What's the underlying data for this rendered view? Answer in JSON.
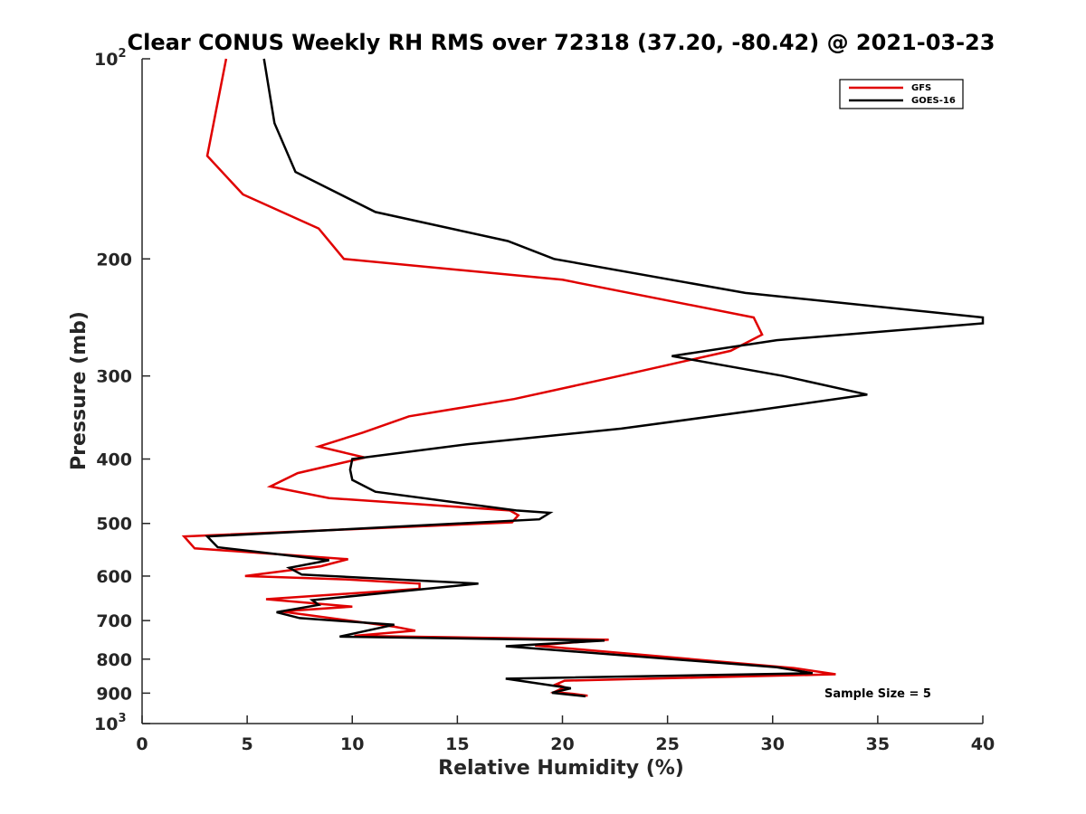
{
  "chart_data": {
    "type": "line",
    "title": "Clear CONUS Weekly RH RMS over 72318 (37.20, -80.42) @ 2021-03-23",
    "xlabel": "Relative Humidity (%)",
    "ylabel": "Pressure (mb)",
    "xlim": [
      0,
      40
    ],
    "ylim": [
      100,
      1000
    ],
    "y_scale": "log",
    "y_reversed": true,
    "x_ticks": [
      "0",
      "5",
      "10",
      "15",
      "20",
      "25",
      "30",
      "35",
      "40"
    ],
    "y_ticks": [
      {
        "value": 100,
        "label": "10",
        "sup": "2"
      },
      {
        "value": 200,
        "label": "200"
      },
      {
        "value": 300,
        "label": "300"
      },
      {
        "value": 400,
        "label": "400"
      },
      {
        "value": 500,
        "label": "500"
      },
      {
        "value": 600,
        "label": "600"
      },
      {
        "value": 700,
        "label": "700"
      },
      {
        "value": 800,
        "label": "800"
      },
      {
        "value": 900,
        "label": "900"
      },
      {
        "value": 1000,
        "label": "10",
        "sup": "3"
      }
    ],
    "legend_position": "top-right",
    "grid": false,
    "annotation": "Sample Size = 5",
    "series": [
      {
        "name": "GFS",
        "color": "#e00000",
        "points": [
          [
            4.0,
            100
          ],
          [
            3.1,
            140
          ],
          [
            4.8,
            160
          ],
          [
            8.4,
            180
          ],
          [
            9.6,
            200
          ],
          [
            20.0,
            215
          ],
          [
            29.1,
            245
          ],
          [
            29.5,
            260
          ],
          [
            28.0,
            275
          ],
          [
            22.7,
            300
          ],
          [
            17.7,
            325
          ],
          [
            12.7,
            345
          ],
          [
            10.5,
            365
          ],
          [
            8.4,
            383
          ],
          [
            10.6,
            398
          ],
          [
            7.4,
            420
          ],
          [
            6.1,
            440
          ],
          [
            8.9,
            458
          ],
          [
            17.5,
            478
          ],
          [
            17.9,
            486
          ],
          [
            17.6,
            498
          ],
          [
            2.0,
            523
          ],
          [
            2.5,
            545
          ],
          [
            9.8,
            566
          ],
          [
            8.5,
            580
          ],
          [
            4.9,
            600
          ],
          [
            9.7,
            607
          ],
          [
            13.2,
            616
          ],
          [
            13.2,
            627
          ],
          [
            5.9,
            650
          ],
          [
            10.0,
            667
          ],
          [
            6.6,
            678
          ],
          [
            12.0,
            715
          ],
          [
            13.0,
            725
          ],
          [
            10.1,
            738
          ],
          [
            22.2,
            748
          ],
          [
            18.7,
            763
          ],
          [
            31.0,
            825
          ],
          [
            33.0,
            843
          ],
          [
            20.1,
            862
          ],
          [
            19.7,
            873
          ],
          [
            20.1,
            882
          ],
          [
            19.6,
            897
          ],
          [
            20.5,
            902
          ],
          [
            21.2,
            908
          ]
        ]
      },
      {
        "name": "GOES-16",
        "color": "#000000",
        "points": [
          [
            5.8,
            100
          ],
          [
            6.3,
            125
          ],
          [
            7.3,
            148
          ],
          [
            11.1,
            170
          ],
          [
            17.4,
            188
          ],
          [
            19.6,
            200
          ],
          [
            28.7,
            225
          ],
          [
            40.0,
            245
          ],
          [
            40.0,
            250
          ],
          [
            30.2,
            265
          ],
          [
            25.2,
            280
          ],
          [
            30.5,
            300
          ],
          [
            34.5,
            320
          ],
          [
            29.2,
            338
          ],
          [
            22.8,
            360
          ],
          [
            15.5,
            380
          ],
          [
            10.0,
            400
          ],
          [
            9.9,
            415
          ],
          [
            10.0,
            430
          ],
          [
            11.1,
            448
          ],
          [
            17.8,
            478
          ],
          [
            19.4,
            482
          ],
          [
            18.9,
            493
          ],
          [
            3.1,
            523
          ],
          [
            3.6,
            543
          ],
          [
            8.9,
            568
          ],
          [
            7.0,
            583
          ],
          [
            7.6,
            597
          ],
          [
            16.0,
            616
          ],
          [
            8.1,
            652
          ],
          [
            8.4,
            663
          ],
          [
            6.4,
            680
          ],
          [
            7.5,
            694
          ],
          [
            12.0,
            710
          ],
          [
            9.4,
            740
          ],
          [
            22.0,
            750
          ],
          [
            17.3,
            765
          ],
          [
            30.2,
            823
          ],
          [
            31.9,
            840
          ],
          [
            17.3,
            856
          ],
          [
            20.4,
            885
          ],
          [
            19.5,
            899
          ],
          [
            21.1,
            910
          ]
        ]
      }
    ]
  }
}
